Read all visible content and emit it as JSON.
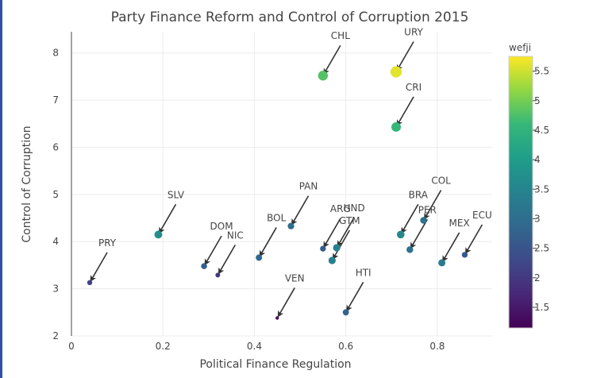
{
  "colors": {
    "grid": "#ececec",
    "axis": "#444444",
    "arrow": "#333333",
    "strip": "#2f4fa8"
  },
  "chart_data": {
    "type": "scatter",
    "title": "Party Finance Reform and Control of Corruption 2015",
    "xlabel": "Political Finance Regulation",
    "ylabel": "Control of Corruption",
    "xlim": [
      0,
      0.92
    ],
    "ylim": [
      2,
      8.45
    ],
    "xticks": [
      0,
      0.2,
      0.4,
      0.6,
      0.8
    ],
    "xtick_labels": [
      "0",
      "0.2",
      "0.4",
      "0.6",
      "0.8"
    ],
    "yticks": [
      2,
      3,
      4,
      5,
      6,
      7,
      8
    ],
    "ytick_labels": [
      "2",
      "3",
      "4",
      "5",
      "6",
      "7",
      "8"
    ],
    "grid": true,
    "colorbar": {
      "title": "wefji",
      "range": [
        1.15,
        5.75
      ],
      "ticks": [
        1.5,
        2,
        2.5,
        3,
        3.5,
        4,
        4.5,
        5,
        5.5
      ],
      "tick_labels": [
        "1.5",
        "2",
        "2.5",
        "3",
        "3.5",
        "4",
        "4.5",
        "5",
        "5.5"
      ],
      "colorscale": "viridis"
    },
    "points": [
      {
        "label": "CHL",
        "x": 0.55,
        "y": 7.52,
        "color_value": 4.8
      },
      {
        "label": "URY",
        "x": 0.71,
        "y": 7.6,
        "color_value": 5.6
      },
      {
        "label": "CRI",
        "x": 0.71,
        "y": 6.43,
        "color_value": 4.6
      },
      {
        "label": "PRY",
        "x": 0.04,
        "y": 3.13,
        "color_value": 2.2
      },
      {
        "label": "SLV",
        "x": 0.19,
        "y": 4.15,
        "color_value": 3.7
      },
      {
        "label": "DOM",
        "x": 0.29,
        "y": 3.48,
        "color_value": 2.7
      },
      {
        "label": "NIC",
        "x": 0.32,
        "y": 3.29,
        "color_value": 2.0
      },
      {
        "label": "BOL",
        "x": 0.41,
        "y": 3.66,
        "color_value": 2.9
      },
      {
        "label": "PAN",
        "x": 0.48,
        "y": 4.33,
        "color_value": 3.0
      },
      {
        "label": "ARG",
        "x": 0.55,
        "y": 3.85,
        "color_value": 2.6
      },
      {
        "label": "HND",
        "x": 0.58,
        "y": 3.87,
        "color_value": 3.4
      },
      {
        "label": "GTM",
        "x": 0.57,
        "y": 3.6,
        "color_value": 3.4
      },
      {
        "label": "VEN",
        "x": 0.45,
        "y": 2.38,
        "color_value": 1.3
      },
      {
        "label": "HTI",
        "x": 0.6,
        "y": 2.5,
        "color_value": 2.8
      },
      {
        "label": "BRA",
        "x": 0.72,
        "y": 4.15,
        "color_value": 3.6
      },
      {
        "label": "COL",
        "x": 0.77,
        "y": 4.45,
        "color_value": 3.1
      },
      {
        "label": "PER",
        "x": 0.74,
        "y": 3.83,
        "color_value": 3.1
      },
      {
        "label": "MEX",
        "x": 0.81,
        "y": 3.55,
        "color_value": 3.3
      },
      {
        "label": "ECU",
        "x": 0.86,
        "y": 3.72,
        "color_value": 2.6
      }
    ]
  }
}
